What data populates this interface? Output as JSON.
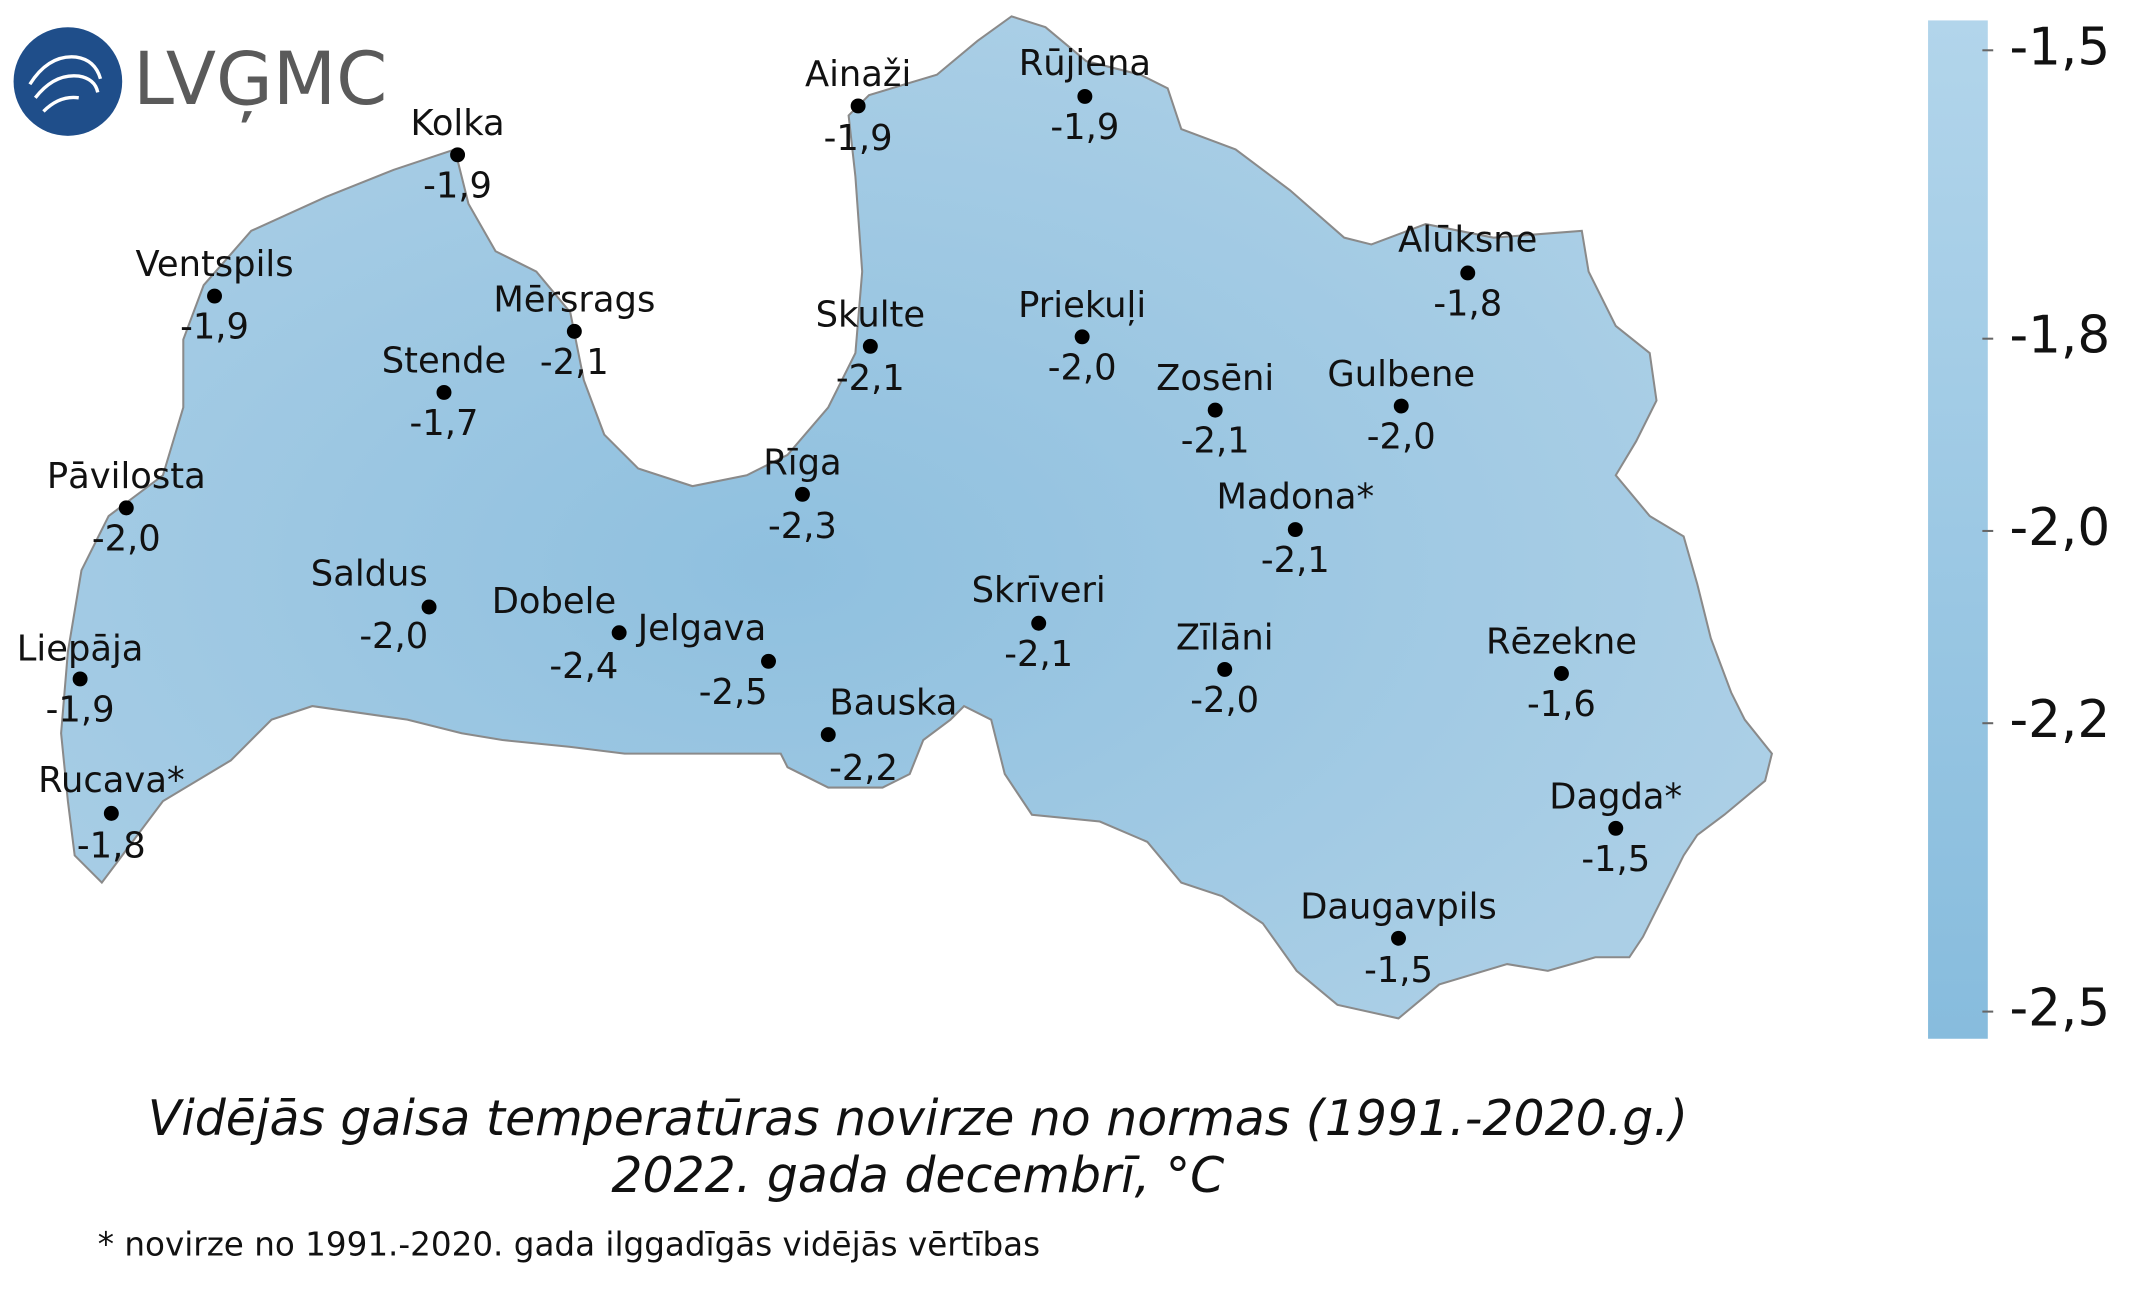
{
  "logo": {
    "text": "LVĢMC"
  },
  "stations": [
    {
      "name": "Kolka",
      "value": -1.9,
      "label": "-1,9"
    },
    {
      "name": "Ventspils",
      "value": -1.9,
      "label": "-1,9"
    },
    {
      "name": "Mērsrags",
      "value": -2.1,
      "label": "-2,1"
    },
    {
      "name": "Stende",
      "value": -1.7,
      "label": "-1,7"
    },
    {
      "name": "Pāvilosta",
      "value": -2.0,
      "label": "-2,0"
    },
    {
      "name": "Saldus",
      "value": -2.0,
      "label": "-2,0"
    },
    {
      "name": "Liepāja",
      "value": -1.9,
      "label": "-1,9"
    },
    {
      "name": "Rucava*",
      "value": -1.8,
      "label": "-1,8"
    },
    {
      "name": "Dobele",
      "value": -2.4,
      "label": "-2,4"
    },
    {
      "name": "Jelgava",
      "value": -2.5,
      "label": "-2,5"
    },
    {
      "name": "Bauska",
      "value": -2.2,
      "label": "-2,2"
    },
    {
      "name": "Rīga",
      "value": -2.3,
      "label": "-2,3"
    },
    {
      "name": "Skulte",
      "value": -2.1,
      "label": "-2,1"
    },
    {
      "name": "Ainaži",
      "value": -1.9,
      "label": "-1,9"
    },
    {
      "name": "Rūjiena",
      "value": -1.9,
      "label": "-1,9"
    },
    {
      "name": "Priekuļi",
      "value": -2.0,
      "label": "-2,0"
    },
    {
      "name": "Alūksne",
      "value": -1.8,
      "label": "-1,8"
    },
    {
      "name": "Zosēni",
      "value": -2.1,
      "label": "-2,1"
    },
    {
      "name": "Gulbene",
      "value": -2.0,
      "label": "-2,0"
    },
    {
      "name": "Madona*",
      "value": -2.1,
      "label": "-2,1"
    },
    {
      "name": "Skrīveri",
      "value": -2.1,
      "label": "-2,1"
    },
    {
      "name": "Zīlāni",
      "value": -2.0,
      "label": "-2,0"
    },
    {
      "name": "Rēzekne",
      "value": -1.6,
      "label": "-1,6"
    },
    {
      "name": "Dagda*",
      "value": -1.5,
      "label": "-1,5"
    },
    {
      "name": "Daugavpils",
      "value": -1.5,
      "label": "-1,5"
    }
  ],
  "colorbar": {
    "lim": [
      -2.5,
      -1.5
    ],
    "colors": [
      "#87bcdd",
      "#b2d5eb"
    ],
    "ticks": [
      {
        "value": -1.5,
        "label": "-1,5"
      },
      {
        "value": -1.8,
        "label": "-1,8"
      },
      {
        "value": -2.0,
        "label": "-2,0"
      },
      {
        "value": -2.2,
        "label": "-2,2"
      },
      {
        "value": -2.5,
        "label": "-2,5"
      }
    ]
  },
  "title": [
    "Vidējās gaisa temperatūras novirze no normas (1991.-2020.g.)",
    "2022. gada decembrī, °C"
  ],
  "footnote": "* novirze no 1991.-2020. gada ilggadīgās vidējās vērtības"
}
